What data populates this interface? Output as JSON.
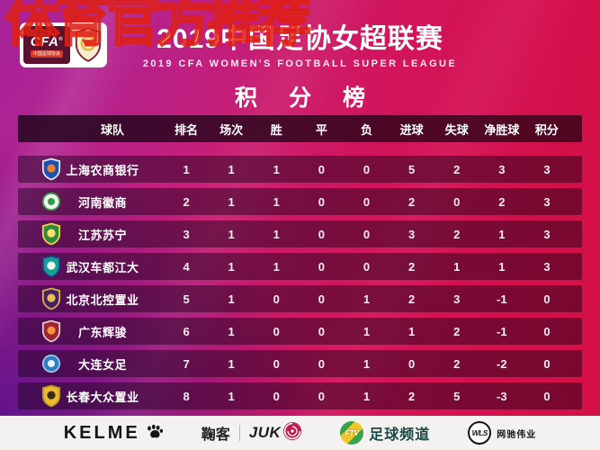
{
  "watermark_text": "体育官方推荐",
  "header": {
    "cfa_logo": {
      "acronym": "CFA",
      "reg_mark": "®",
      "sub_label": "中国足球协会"
    },
    "title": "2019中国足协女超联赛",
    "subtitle": "2019 CFA WOMEN'S FOOTBALL SUPER LEAGUE",
    "section_title": "积 分 榜"
  },
  "table": {
    "columns": [
      "球队",
      "排名",
      "场次",
      "胜",
      "平",
      "负",
      "进球",
      "失球",
      "净胜球",
      "积分"
    ],
    "rows": [
      {
        "team": "上海农商银行",
        "rank": "1",
        "played": "1",
        "win": "1",
        "draw": "0",
        "loss": "0",
        "goals_for": "5",
        "goals_against": "2",
        "goal_diff": "3",
        "points": "3",
        "crest": {
          "shape": "shield",
          "border": "#dfe7f5",
          "bg": "#1f4fb0",
          "inner": "#f08030"
        }
      },
      {
        "team": "河南徽商",
        "rank": "2",
        "played": "1",
        "win": "1",
        "draw": "0",
        "loss": "0",
        "goals_for": "2",
        "goals_against": "0",
        "goal_diff": "2",
        "points": "3",
        "crest": {
          "shape": "circle",
          "border": "#3fa050",
          "bg": "#f2f6ee",
          "inner": "#2f9e4a"
        }
      },
      {
        "team": "江苏苏宁",
        "rank": "3",
        "played": "1",
        "win": "1",
        "draw": "0",
        "loss": "0",
        "goals_for": "3",
        "goals_against": "2",
        "goal_diff": "1",
        "points": "3",
        "crest": {
          "shape": "shield",
          "border": "#f5d04a",
          "bg": "#2e8a3c",
          "inner": "#ffe26a"
        }
      },
      {
        "team": "武汉车都江大",
        "rank": "4",
        "played": "1",
        "win": "1",
        "draw": "0",
        "loss": "0",
        "goals_for": "2",
        "goals_against": "1",
        "goal_diff": "1",
        "points": "3",
        "crest": {
          "shape": "shield",
          "border": "#1d3f8f",
          "bg": "#16a191",
          "inner": "#eaf6f0"
        }
      },
      {
        "team": "北京北控置业",
        "rank": "5",
        "played": "1",
        "win": "0",
        "draw": "0",
        "loss": "1",
        "goals_for": "2",
        "goals_against": "3",
        "goal_diff": "-1",
        "points": "0",
        "crest": {
          "shape": "shield",
          "border": "#d8b054",
          "bg": "#46215e",
          "inner": "#e7c253"
        }
      },
      {
        "team": "广东辉骏",
        "rank": "6",
        "played": "1",
        "win": "0",
        "draw": "0",
        "loss": "1",
        "goals_for": "1",
        "goals_against": "2",
        "goal_diff": "-1",
        "points": "0",
        "crest": {
          "shape": "shield",
          "border": "#e0c9cc",
          "bg": "#9c2432",
          "inner": "#f2953f"
        }
      },
      {
        "team": "大连女足",
        "rank": "7",
        "played": "1",
        "win": "0",
        "draw": "0",
        "loss": "1",
        "goals_for": "0",
        "goals_against": "2",
        "goal_diff": "-2",
        "points": "0",
        "crest": {
          "shape": "circle",
          "border": "#9fc3e8",
          "bg": "#2f7cc4",
          "inner": "#e8f2fa"
        }
      },
      {
        "team": "长春大众置业",
        "rank": "8",
        "played": "1",
        "win": "0",
        "draw": "0",
        "loss": "1",
        "goals_for": "2",
        "goals_against": "5",
        "goal_diff": "-3",
        "points": "0",
        "crest": {
          "shape": "shield",
          "border": "#b8902e",
          "bg": "#edba2f",
          "inner": "#3a2c12"
        }
      }
    ]
  },
  "footer": {
    "kelme": {
      "label": "KELME"
    },
    "juke": {
      "cn_label": "鞠客",
      "en_label": "JUK"
    },
    "ftv": {
      "icon_text": "FTV",
      "label": "足球频道"
    },
    "wls": {
      "icon_text": "WLS",
      "label": "网驰伟业"
    }
  },
  "colors": {
    "background_magenta": "#c61f78",
    "background_crimson": "#d50e44",
    "background_purple": "#3a0c8c",
    "row_overlay": "#5e1347",
    "header_band": "#2a0620",
    "watermark_red": "#de1e12",
    "footer_bg": "#f4f2f1"
  },
  "chart_data": {
    "type": "table",
    "title": "2019中国足协女超联赛 积分榜",
    "subtitle": "2019 CFA WOMEN'S FOOTBALL SUPER LEAGUE",
    "columns": [
      "球队",
      "排名",
      "场次",
      "胜",
      "平",
      "负",
      "进球",
      "失球",
      "净胜球",
      "积分"
    ],
    "rows": [
      [
        "上海农商银行",
        1,
        1,
        1,
        0,
        0,
        5,
        2,
        3,
        3
      ],
      [
        "河南徽商",
        2,
        1,
        1,
        0,
        0,
        2,
        0,
        2,
        3
      ],
      [
        "江苏苏宁",
        3,
        1,
        1,
        0,
        0,
        3,
        2,
        1,
        3
      ],
      [
        "武汉车都江大",
        4,
        1,
        1,
        0,
        0,
        2,
        1,
        1,
        3
      ],
      [
        "北京北控置业",
        5,
        1,
        0,
        0,
        1,
        2,
        3,
        -1,
        0
      ],
      [
        "广东辉骏",
        6,
        1,
        0,
        0,
        1,
        1,
        2,
        -1,
        0
      ],
      [
        "大连女足",
        7,
        1,
        0,
        0,
        1,
        0,
        2,
        -2,
        0
      ],
      [
        "长春大众置业",
        8,
        1,
        0,
        0,
        1,
        2,
        5,
        -3,
        0
      ]
    ]
  }
}
